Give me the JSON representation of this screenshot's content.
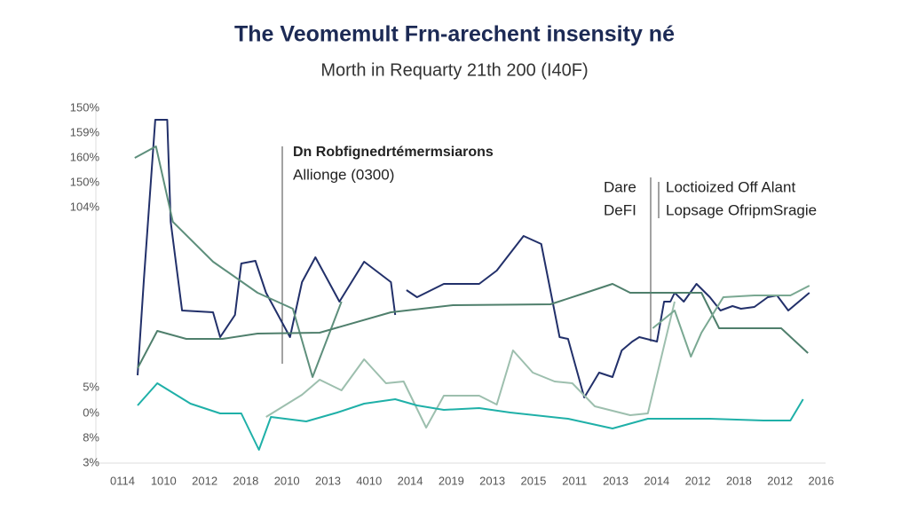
{
  "chart_data": {
    "type": "line",
    "title": "The Veomemult Frn-arechent insensity né",
    "subtitle": "Morth in Requarty 21th 200 (I40F)",
    "categories": [
      "0114",
      "1010",
      "2012",
      "2018",
      "2010",
      "2013",
      "4010",
      "2014",
      "2019",
      "2013",
      "2015",
      "2011",
      "2013",
      "2014",
      "2012",
      "2018",
      "2012",
      "2016"
    ],
    "y_labels": [
      "150%",
      "159%",
      "160%",
      "150%",
      "104%",
      "5%",
      "0%",
      "8%",
      "3%"
    ],
    "xlim": [
      0,
      100
    ],
    "ylim": [
      0,
      100
    ],
    "annotations": [
      {
        "lines": [
          "Dn Robfignedrtémermsiarons",
          "Allionge (0300)"
        ]
      },
      {
        "lines": [
          "Dare",
          "DeFI"
        ]
      },
      {
        "lines": [
          "Loctioized Off Alant",
          "Lopsage OfripmSragie"
        ]
      }
    ],
    "series": [
      {
        "color": "#22306a",
        "x": [
          4.4,
          5.3,
          6.9,
          8.6,
          9.1,
          10.7,
          15.1,
          16.1,
          18.2,
          19.1,
          21.1,
          22.6,
          26.0,
          27.7,
          29.6,
          33.0,
          36.5,
          40.3,
          40.9,
          41.7,
          42.5,
          44.0,
          47.8,
          52.8,
          55.3,
          59.1,
          61.6,
          64.2,
          65.4,
          67.7,
          69.8,
          71.7,
          73.0,
          74.5,
          75.5,
          78.0,
          79.0,
          79.9,
          80.5,
          81.8,
          83.6,
          85.5,
          87.0,
          88.7,
          89.9,
          91.8,
          93.7,
          95.0,
          96.6,
          99.6
        ],
        "values": [
          24.75,
          51.75,
          96.75,
          96.75,
          68,
          43,
          42.5,
          35.5,
          41.75,
          56.25,
          57,
          48,
          35.5,
          51,
          58,
          45.5,
          56.75,
          51,
          41.75,
          null,
          48.75,
          46.75,
          50.5,
          50.5,
          54.25,
          64,
          61.75,
          35.5,
          35,
          18.5,
          25.5,
          24.25,
          31.75,
          34.25,
          35.5,
          34.25,
          45.5,
          45.5,
          48,
          45.5,
          50.5,
          46.75,
          43,
          44.25,
          43.5,
          44,
          46.75,
          47.25,
          43,
          48
        ]
      },
      {
        "color": "#5e8f7c",
        "x": [
          4.0,
          7.0,
          9.4,
          15.1,
          21.4,
          26.4,
          29.2,
          33.3
        ],
        "values": [
          86,
          89.25,
          68,
          56.75,
          48,
          43.5,
          24.25,
          45.5
        ]
      },
      {
        "color": "#4f7f6c",
        "x": [
          4.4,
          7.2,
          11.3,
          16.4,
          21.4,
          30.2,
          40.3,
          49.1,
          62.9,
          67.9,
          71.7,
          74.2,
          84.3,
          86.8,
          95.6,
          99.4
        ],
        "values": [
          26.75,
          37.25,
          35,
          35,
          36.5,
          36.75,
          42.5,
          44.5,
          44.75,
          48,
          50.5,
          48,
          48,
          38,
          38,
          31
        ]
      },
      {
        "color": "#9dbfae",
        "x": [
          22.6,
          27.7,
          30.2,
          33.3,
          36.5,
          39.6,
          42.1,
          45.3,
          47.8,
          52.8,
          55.3,
          57.6,
          60.4,
          63.5,
          66.0,
          69.2,
          74.2,
          76.7,
          80.5
        ],
        "values": [
          13,
          19.25,
          23.5,
          20.5,
          29.25,
          22.5,
          23,
          10,
          19,
          19,
          16.5,
          31.75,
          25.5,
          23,
          22.5,
          16,
          13.5,
          14,
          45.5
        ]
      },
      {
        "color": "#7aa892",
        "x": [
          77.4,
          80.5,
          82.8,
          84.3,
          87.4,
          91.8,
          96.9,
          99.6
        ],
        "values": [
          38,
          43,
          30,
          36.75,
          46.75,
          47.25,
          47.25,
          50
        ]
      },
      {
        "color": "#1fb0a8",
        "x": [
          4.4,
          7.2,
          11.9,
          16.1,
          19.1,
          21.6,
          23.3,
          28.3,
          32.7,
          36.5,
          40.9,
          44.0,
          47.8,
          52.8,
          57.2,
          65.4,
          71.7,
          76.7,
          85.5,
          93.1,
          96.9,
          98.7
        ],
        "values": [
          16.25,
          22.5,
          16.75,
          14,
          14,
          3.75,
          13,
          11.75,
          14.25,
          16.75,
          18,
          16.25,
          15,
          15.5,
          14.25,
          12.5,
          9.75,
          12.5,
          12.5,
          12,
          12,
          18
        ]
      }
    ]
  }
}
